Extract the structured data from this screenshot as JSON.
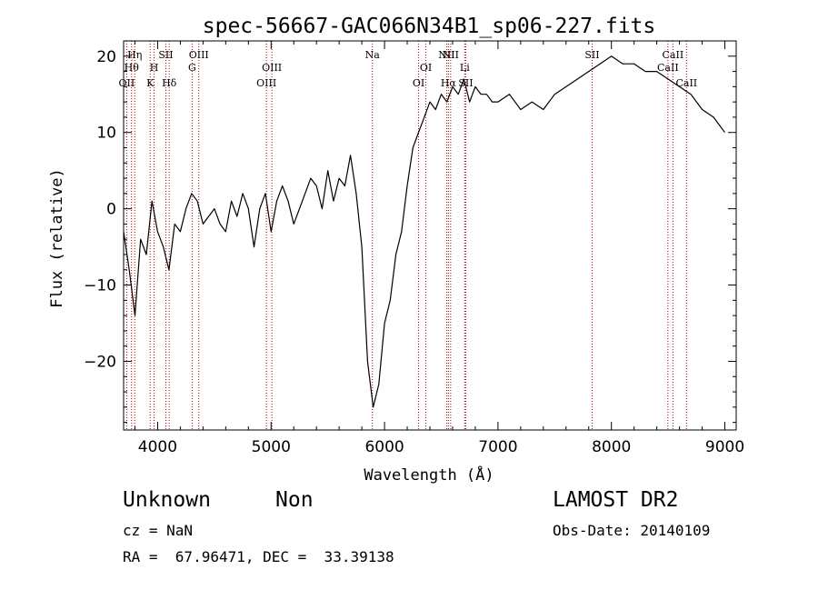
{
  "chart_data": {
    "type": "line",
    "title": "spec-56667-GAC066N34B1_sp06-227.fits",
    "xlabel": "Wavelength (Å)",
    "ylabel": "Flux (relative)",
    "xlim": [
      3700,
      9100
    ],
    "ylim": [
      -29,
      22
    ],
    "xticks": [
      4000,
      5000,
      6000,
      7000,
      8000,
      9000
    ],
    "yticks": [
      -20,
      -10,
      0,
      10,
      20
    ],
    "x_tick_labels": [
      "4000",
      "5000",
      "6000",
      "7000",
      "8000",
      "9000"
    ],
    "y_tick_labels": [
      "−20",
      "−10",
      "0",
      "10",
      "20"
    ],
    "line_color": "#000000",
    "marker_color": "#aa0000",
    "series": [
      {
        "x": [
          3700,
          3750,
          3800,
          3850,
          3900,
          3950,
          4000,
          4050,
          4100,
          4150,
          4200,
          4250,
          4300,
          4350,
          4400,
          4450,
          4500,
          4550,
          4600,
          4650,
          4700,
          4750,
          4800,
          4850,
          4900,
          4950,
          5000,
          5050,
          5100,
          5150,
          5200,
          5250,
          5300,
          5350,
          5400,
          5450,
          5500,
          5550,
          5600,
          5650,
          5700,
          5750,
          5800,
          5850,
          5900,
          5950,
          6000,
          6050,
          6100,
          6150,
          6200,
          6250,
          6300,
          6350,
          6400,
          6450,
          6500,
          6550,
          6600,
          6650,
          6700,
          6750,
          6800,
          6850,
          6900,
          6950,
          7000,
          7100,
          7200,
          7300,
          7400,
          7500,
          7600,
          7700,
          7800,
          7900,
          8000,
          8100,
          8200,
          8300,
          8400,
          8500,
          8600,
          8700,
          8800,
          8900,
          9000
        ],
        "y": [
          -3,
          -8,
          -14,
          -4,
          -6,
          1,
          -3,
          -5,
          -8,
          -2,
          -3,
          0,
          2,
          1,
          -2,
          -1,
          0,
          -2,
          -3,
          1,
          -1,
          2,
          0,
          -5,
          0,
          2,
          -3,
          1,
          3,
          1,
          -2,
          0,
          2,
          4,
          3,
          0,
          5,
          1,
          4,
          3,
          7,
          2,
          -5,
          -20,
          -26,
          -23,
          -15,
          -12,
          -6,
          -3,
          3,
          8,
          10,
          12,
          14,
          13,
          15,
          14,
          16,
          15,
          17,
          14,
          16,
          15,
          15,
          14,
          14,
          15,
          13,
          14,
          13,
          15,
          16,
          17,
          18,
          19,
          20,
          19,
          19,
          18,
          18,
          17,
          16,
          15,
          13,
          12,
          10
        ]
      }
    ],
    "line_markers": [
      {
        "x": 3727,
        "label": "OII",
        "row": 3
      },
      {
        "x": 3770,
        "label": "Hθ",
        "row": 2
      },
      {
        "x": 3798,
        "label": "Hη",
        "row": 1
      },
      {
        "x": 3934,
        "label": "K",
        "row": 3
      },
      {
        "x": 3969,
        "label": "H",
        "row": 2
      },
      {
        "x": 4072,
        "label": "SII",
        "row": 1
      },
      {
        "x": 4102,
        "label": "Hδ",
        "row": 3
      },
      {
        "x": 4304,
        "label": "G",
        "row": 2
      },
      {
        "x": 4363,
        "label": "OIII",
        "row": 1
      },
      {
        "x": 4959,
        "label": "OIII",
        "row": 3
      },
      {
        "x": 5007,
        "label": "OIII",
        "row": 2
      },
      {
        "x": 5893,
        "label": "Na",
        "row": 1
      },
      {
        "x": 6300,
        "label": "OI",
        "row": 3
      },
      {
        "x": 6364,
        "label": "OI",
        "row": 2
      },
      {
        "x": 6548,
        "label": "NII",
        "row": 1
      },
      {
        "x": 6563,
        "label": "Hα",
        "row": 3
      },
      {
        "x": 6583,
        "label": "NII",
        "row": 1
      },
      {
        "x": 6707,
        "label": "Li",
        "row": 2
      },
      {
        "x": 6716,
        "label": "SII",
        "row": 3
      },
      {
        "x": 7830,
        "label": "SII",
        "row": 1
      },
      {
        "x": 8498,
        "label": "CaII",
        "row": 2
      },
      {
        "x": 8542,
        "label": "CaII",
        "row": 1
      },
      {
        "x": 8662,
        "label": "CaII",
        "row": 3
      }
    ]
  },
  "footer": {
    "object_class": "Unknown",
    "subclass": "Non",
    "redshift": "cz = NaN",
    "coords": "RA =  67.96471, DEC =  33.39138",
    "survey": "LAMOST DR2",
    "obs_date": "Obs-Date: 20140109"
  }
}
